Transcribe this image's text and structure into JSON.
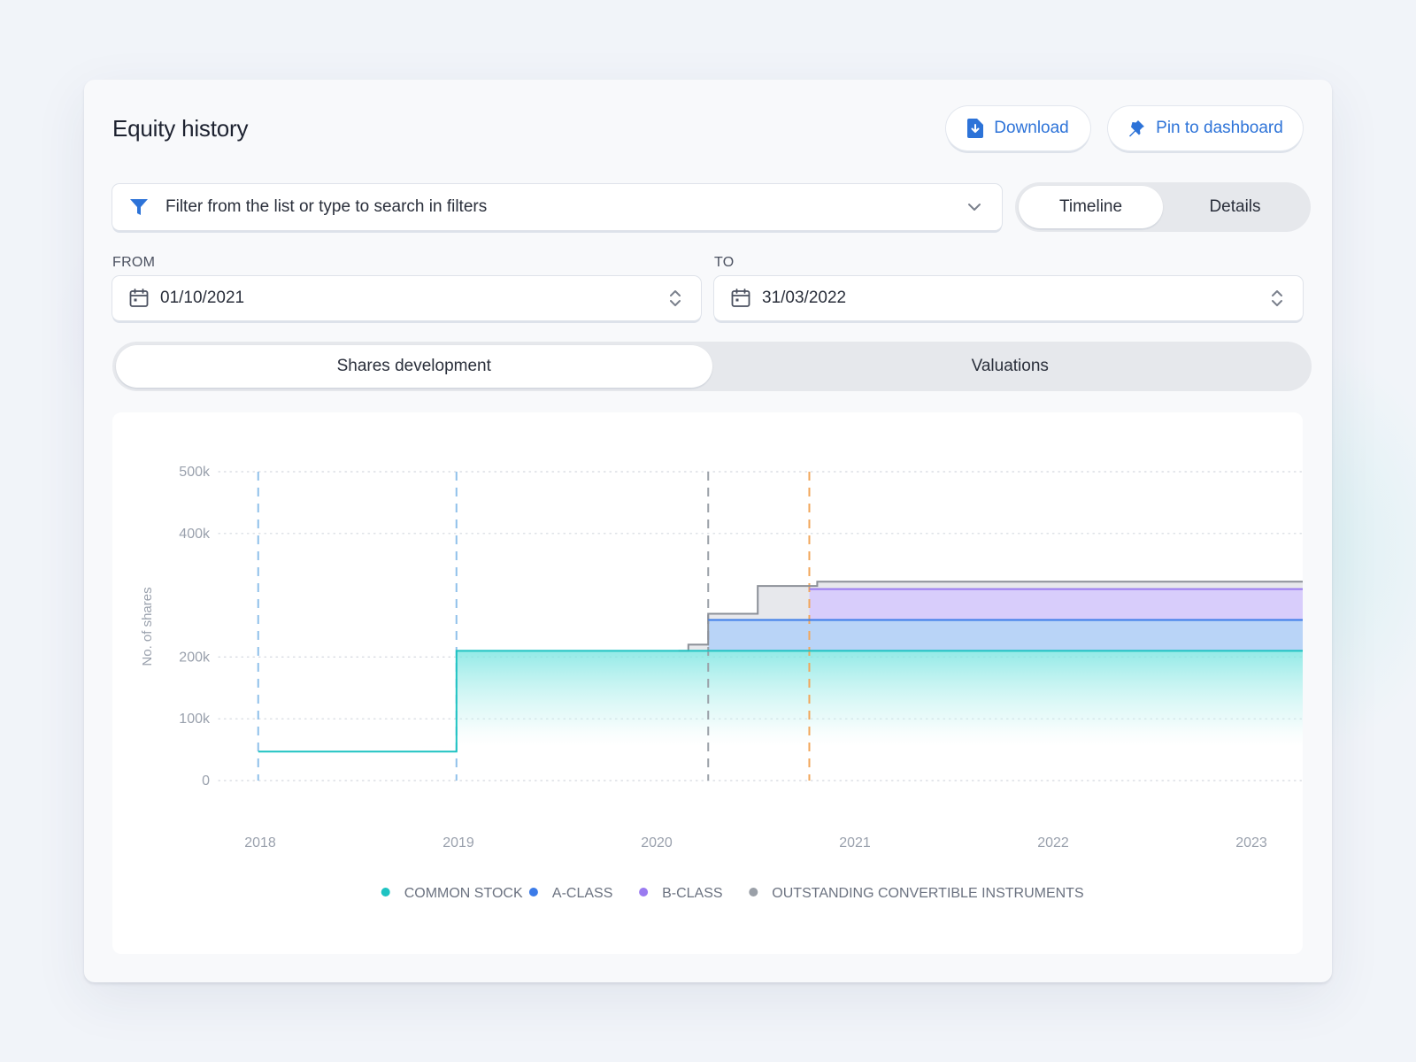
{
  "header": {
    "title": "Equity history"
  },
  "actions": {
    "download_label": "Download",
    "pin_label": "Pin to dashboard"
  },
  "filter": {
    "placeholder": "Filter from the list or type to search in filters"
  },
  "view_toggle": {
    "items": [
      "Timeline",
      "Details"
    ],
    "active": "Timeline"
  },
  "range": {
    "from_label": "FROM",
    "from_value": "01/10/2021",
    "to_label": "TO",
    "to_value": "31/03/2022"
  },
  "chart_tabs": {
    "items": [
      "Shares development",
      "Valuations"
    ],
    "active": "Shares development"
  },
  "icons": {
    "download": "download-file-icon",
    "pin": "pin-icon",
    "filter": "funnel-icon",
    "dropdown": "chevron-down-icon",
    "calendar": "calendar-icon",
    "stepper": "up-down-chevron-icon"
  },
  "colors": {
    "accent": "#2d73d8",
    "common": "#1ec3c2",
    "a_class": "#3b7be8",
    "b_class": "#9a7bf0",
    "convertible": "#9aa0a8",
    "marker_blue": "#8fc0ea",
    "marker_orange": "#f2a65a"
  },
  "chart_data": {
    "type": "area",
    "stacked": true,
    "step": true,
    "ylabel": "No. of shares",
    "xlabel": "",
    "x_ticks": [
      "2018",
      "2019",
      "2020",
      "2021",
      "2022",
      "2023"
    ],
    "y_ticks": [
      "0",
      "100k",
      "200k",
      "400k",
      "500k"
    ],
    "xlim": [
      2017.99,
      2023.35
    ],
    "ylim": [
      0,
      500000
    ],
    "grid": true,
    "legend_position": "bottom",
    "series": [
      {
        "name": "COMMON STOCK",
        "color": "#1ec3c2",
        "points": [
          [
            2017.99,
            47000
          ],
          [
            2018.99,
            47000
          ],
          [
            2018.99,
            210000
          ],
          [
            2023.35,
            210000
          ]
        ]
      },
      {
        "name": "A-CLASS",
        "color": "#3b7be8",
        "points": [
          [
            2020.26,
            0
          ],
          [
            2020.26,
            260000
          ],
          [
            2023.35,
            260000
          ]
        ]
      },
      {
        "name": "B-CLASS",
        "color": "#9a7bf0",
        "points": [
          [
            2020.77,
            0
          ],
          [
            2020.77,
            310000
          ],
          [
            2023.35,
            310000
          ]
        ]
      },
      {
        "name": "OUTSTANDING CONVERTIBLE INSTRUMENTS",
        "color": "#9aa0a8",
        "points": [
          [
            2020.11,
            210000
          ],
          [
            2020.16,
            210000
          ],
          [
            2020.16,
            220000
          ],
          [
            2020.26,
            220000
          ],
          [
            2020.26,
            270000
          ],
          [
            2020.51,
            270000
          ],
          [
            2020.51,
            315000
          ],
          [
            2020.81,
            315000
          ],
          [
            2020.81,
            322000
          ],
          [
            2023.35,
            322000
          ]
        ]
      }
    ],
    "event_markers": [
      {
        "x": 2017.99,
        "color": "#8fc0ea"
      },
      {
        "x": 2018.99,
        "color": "#8fc0ea"
      },
      {
        "x": 2020.26,
        "color": "#9aa0a8"
      },
      {
        "x": 2020.77,
        "color": "#f2a65a"
      }
    ]
  }
}
